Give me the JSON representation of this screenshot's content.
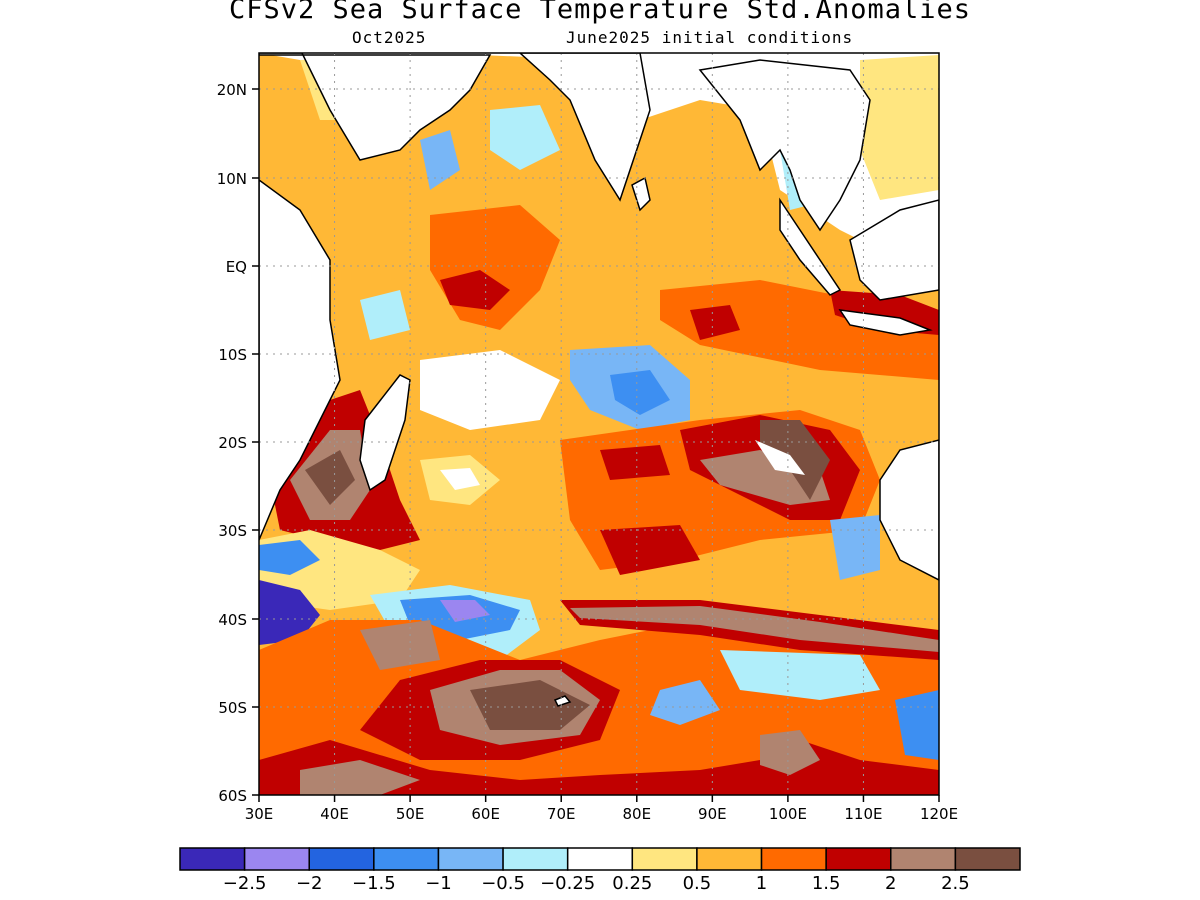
{
  "title": "CFSv2 Sea Surface Temperature Std.Anomalies",
  "subtitle_left": "Oct2025",
  "subtitle_right": "June2025 initial conditions",
  "lat_ticks": [
    "20N",
    "10N",
    "EQ",
    "10S",
    "20S",
    "30S",
    "40S",
    "50S",
    "60S"
  ],
  "lon_ticks": [
    "30E",
    "40E",
    "50E",
    "60E",
    "70E",
    "80E",
    "90E",
    "100E",
    "110E",
    "120E"
  ],
  "colorbar": {
    "colors": [
      "#3a28b8",
      "#9b86f0",
      "#2364e0",
      "#3d8ff2",
      "#78b6f6",
      "#b0eefa",
      "#ffffff",
      "#ffe680",
      "#ffb836",
      "#ff6a00",
      "#c00000",
      "#b08470",
      "#7a4f40"
    ],
    "labels": [
      "−2.5",
      "−2",
      "−1.5",
      "−1",
      "−0.5",
      "−0.25",
      "0.25",
      "0.5",
      "1",
      "1.5",
      "2",
      "2.5"
    ]
  }
}
